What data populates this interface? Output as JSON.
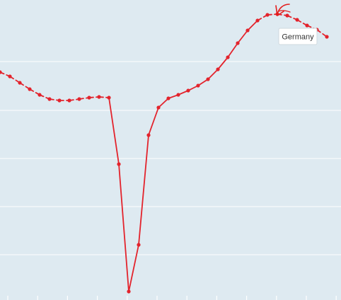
{
  "chart_data": {
    "type": "line",
    "title": "",
    "xlabel": "",
    "ylabel": "",
    "legend": "none",
    "grid": true,
    "x_ticks_count": 12,
    "series": [
      {
        "name": "Germany",
        "color": "#e3232c",
        "values": [
          102,
          108,
          117,
          126,
          134,
          140,
          142,
          142,
          140,
          138,
          137,
          138,
          232,
          412,
          346,
          191,
          152,
          139,
          134,
          128,
          121,
          112,
          98,
          81,
          61,
          43,
          29,
          21,
          20,
          22,
          28,
          36,
          42,
          52
        ],
        "dashed_segments": [
          [
            0,
            11
          ],
          [
            26,
            33
          ]
        ]
      }
    ],
    "ylim": [
      420,
      0
    ]
  },
  "tooltip": {
    "label": "Germany"
  },
  "colors": {
    "plot_background": "#deeaf1",
    "grid": "#ffffff",
    "line": "#e3232c",
    "annotation": "#e31d1d"
  }
}
